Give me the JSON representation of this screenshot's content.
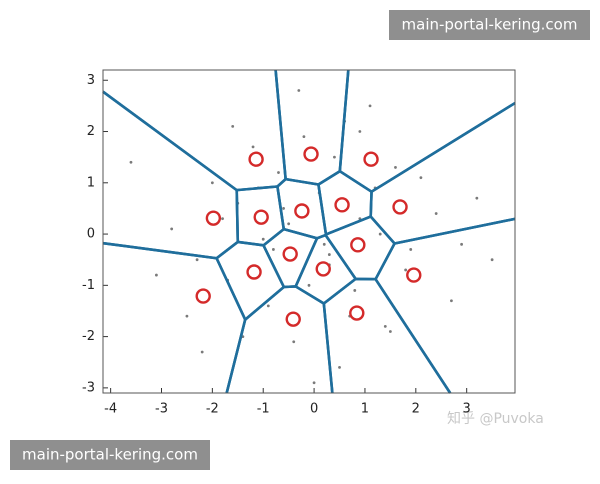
{
  "chart_data": {
    "type": "scatter",
    "xlim": [
      -4.15,
      3.95
    ],
    "ylim": [
      -3.1,
      3.2
    ],
    "xticks": [
      -4,
      -3,
      -2,
      -1,
      0,
      1,
      2,
      3
    ],
    "yticks": [
      -3,
      -2,
      -1,
      0,
      1,
      2,
      3
    ],
    "voronoi": true,
    "voronoi_color": "#1f6e9c",
    "series": [
      {
        "color": "#7a7a7a",
        "marker": "dot",
        "x": [
          -0.5,
          0.3,
          1.2,
          -1.5,
          0.8,
          -0.2,
          1.9,
          -2.3,
          0.1,
          -0.9,
          1.4,
          -1.2,
          0.6,
          -0.4,
          2.4,
          -2.8,
          0.9,
          -1.7,
          0.2,
          1.1,
          -0.7,
          0.5,
          -1.0,
          1.6,
          -2.0,
          2.7,
          -0.1,
          0.4,
          -1.4,
          1.8,
          -3.1,
          3.2,
          -0.6,
          0.7,
          -2.5,
          2.1,
          -0.3,
          1.3,
          -1.8,
          0.0,
          -3.6,
          3.5,
          0.9,
          -1.1,
          2.9,
          -2.2,
          0.3,
          -0.8,
          1.5,
          -1.6
        ],
        "y": [
          0.2,
          -0.4,
          0.9,
          0.6,
          -1.1,
          1.9,
          -0.3,
          -0.5,
          0.8,
          -1.4,
          -1.8,
          1.7,
          2.2,
          -2.1,
          0.4,
          0.1,
          0.3,
          -0.9,
          -0.2,
          2.5,
          1.2,
          -2.6,
          -0.1,
          1.3,
          1.0,
          -1.3,
          -1.0,
          1.5,
          -2.0,
          -0.7,
          -0.8,
          0.7,
          0.5,
          -1.6,
          -1.6,
          1.1,
          2.8,
          0.0,
          0.3,
          -2.9,
          1.4,
          -0.5,
          2.0,
          0.9,
          -0.2,
          -2.3,
          -0.6,
          -0.3,
          -1.9,
          2.1
        ]
      },
      {
        "color": "#d42a2a",
        "marker": "ring",
        "x": [
          -1.14,
          -0.06,
          1.12,
          -1.98,
          -1.04,
          -0.24,
          0.55,
          1.69,
          -1.18,
          -0.47,
          0.18,
          0.86,
          1.96,
          -2.18,
          -0.41,
          0.84
        ],
        "y": [
          1.46,
          1.56,
          1.46,
          0.31,
          0.33,
          0.45,
          0.57,
          0.53,
          -0.74,
          -0.39,
          -0.68,
          -0.21,
          -0.8,
          -1.21,
          -1.66,
          -1.54
        ]
      }
    ]
  },
  "watermarks": {
    "top_right": "main-portal-kering.com",
    "bottom_left": "main-portal-kering.com",
    "credit": "知乎 @Puvoka"
  }
}
